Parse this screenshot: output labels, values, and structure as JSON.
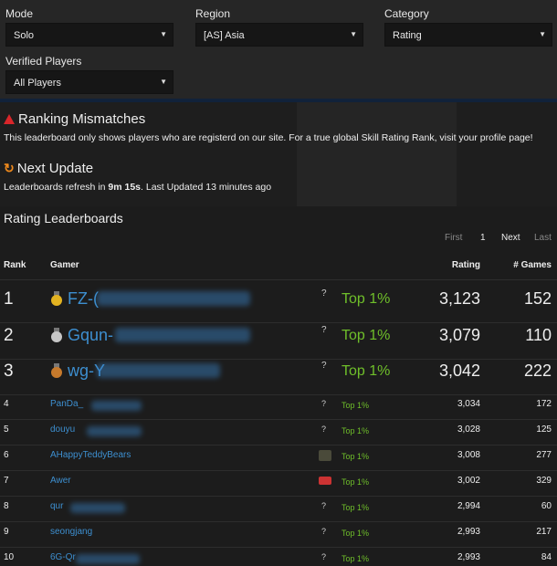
{
  "filters": {
    "mode": {
      "label": "Mode",
      "value": "Solo"
    },
    "region": {
      "label": "Region",
      "value": "[AS] Asia"
    },
    "category": {
      "label": "Category",
      "value": "Rating"
    },
    "verified": {
      "label": "Verified Players",
      "value": "All Players"
    }
  },
  "mismatch": {
    "title": "Ranking Mismatches",
    "text": "This leaderboard only shows players who are registerd on our site. For a true global Skill Rating Rank, visit your profile page!"
  },
  "update": {
    "title": "Next Update",
    "text_prefix": "Leaderboards refresh in ",
    "time": "9m 15s",
    "text_suffix": ". Last Updated 13 minutes ago"
  },
  "leaderboard": {
    "title": "Rating Leaderboards",
    "pager": {
      "first": "First",
      "page": "1",
      "next": "Next",
      "last": "Last"
    },
    "columns": {
      "rank": "Rank",
      "gamer": "Gamer",
      "rating": "Rating",
      "games": "# Games"
    },
    "rows": [
      {
        "rank": "1",
        "gamer": "FZ-(",
        "tier": "Top 1%",
        "rating": "3,123",
        "games": "152",
        "medal": "gold"
      },
      {
        "rank": "2",
        "gamer": "Gqun-",
        "tier": "Top 1%",
        "rating": "3,079",
        "games": "110",
        "medal": "silver"
      },
      {
        "rank": "3",
        "gamer": "wg-Y",
        "tier": "Top 1%",
        "rating": "3,042",
        "games": "222",
        "medal": "bronze"
      },
      {
        "rank": "4",
        "gamer": "PanDa_",
        "tier": "Top 1%",
        "rating": "3,034",
        "games": "172"
      },
      {
        "rank": "5",
        "gamer": "douyu",
        "tier": "Top 1%",
        "rating": "3,028",
        "games": "125"
      },
      {
        "rank": "6",
        "gamer": "AHappyTeddyBears",
        "tier": "Top 1%",
        "rating": "3,008",
        "games": "277"
      },
      {
        "rank": "7",
        "gamer": "Awer",
        "tier": "Top 1%",
        "rating": "3,002",
        "games": "329"
      },
      {
        "rank": "8",
        "gamer": "qur",
        "tier": "Top 1%",
        "rating": "2,994",
        "games": "60"
      },
      {
        "rank": "9",
        "gamer": "seongjang",
        "tier": "Top 1%",
        "rating": "2,993",
        "games": "217"
      },
      {
        "rank": "10",
        "gamer": "6G-Qr",
        "tier": "Top 1%",
        "rating": "2,993",
        "games": "84"
      }
    ]
  }
}
